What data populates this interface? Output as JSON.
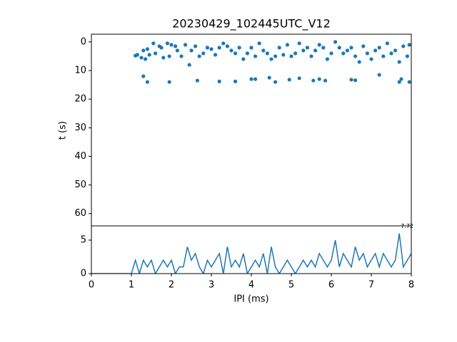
{
  "chart_data": [
    {
      "type": "scatter",
      "title": "20230429_102445UTC_V12",
      "y_label": "t (s)",
      "color": "#1f77b4",
      "x": [
        1.1,
        1.15,
        1.25,
        1.3,
        1.35,
        1.4,
        1.45,
        1.55,
        1.6,
        1.7,
        1.75,
        1.8,
        1.9,
        1.95,
        2.0,
        2.1,
        2.15,
        2.25,
        2.35,
        2.45,
        2.5,
        2.6,
        2.7,
        2.8,
        2.9,
        3.0,
        3.1,
        3.2,
        3.3,
        3.4,
        3.5,
        3.6,
        3.7,
        3.8,
        3.9,
        4.0,
        4.1,
        4.2,
        4.3,
        4.4,
        4.5,
        4.6,
        4.7,
        4.8,
        4.9,
        5.0,
        5.1,
        5.2,
        5.3,
        5.4,
        5.5,
        5.6,
        5.7,
        5.8,
        5.9,
        6.0,
        6.1,
        6.2,
        6.3,
        6.4,
        6.5,
        6.6,
        6.7,
        6.8,
        6.9,
        7.0,
        7.1,
        7.2,
        7.3,
        7.4,
        7.5,
        7.6,
        7.7,
        7.8,
        7.9,
        7.95,
        1.3,
        1.4,
        1.95,
        2.65,
        3.2,
        3.6,
        4.0,
        4.1,
        4.45,
        4.6,
        4.95,
        5.2,
        5.55,
        5.7,
        5.85,
        6.5,
        6.6,
        7.2,
        7.7,
        7.75,
        7.95
      ],
      "values": [
        4.8,
        4.5,
        5.5,
        3,
        6,
        2.5,
        4.5,
        0.5,
        4,
        1.5,
        2,
        5.5,
        0.5,
        5,
        1,
        1.5,
        3,
        5,
        1,
        8,
        3,
        1.5,
        5,
        4,
        2,
        2.5,
        4.5,
        2,
        0.5,
        1.5,
        3,
        4,
        2,
        6,
        4,
        2,
        5,
        0.5,
        3,
        4,
        6,
        5,
        2,
        4.5,
        1,
        5,
        4,
        0.5,
        3,
        2,
        5,
        3,
        1,
        2,
        6,
        4,
        0,
        2,
        4,
        3,
        2,
        5,
        7,
        1.5,
        4,
        6,
        3,
        2,
        5,
        0.5,
        4,
        3,
        7,
        1.5,
        5,
        1,
        12,
        14,
        14,
        13.5,
        13.8,
        13.8,
        13,
        13,
        12.5,
        14,
        13.2,
        12.7,
        13.5,
        13,
        13.5,
        13.2,
        13.4,
        11.5,
        14,
        13,
        14
      ],
      "xlim": [
        0,
        8
      ],
      "ylim": [
        -2.7,
        64.3
      ],
      "y_inverted": true,
      "yticks": [
        0,
        10,
        20,
        30,
        40,
        50,
        60
      ]
    },
    {
      "type": "line",
      "x_label": "IPI (ms)",
      "color": "#1f77b4",
      "annotation": "7.72",
      "x": [
        0,
        0.1,
        0.2,
        0.3,
        0.4,
        0.5,
        0.6,
        0.7,
        0.8,
        0.9,
        1.0,
        1.1,
        1.2,
        1.3,
        1.4,
        1.5,
        1.6,
        1.7,
        1.8,
        1.9,
        2.0,
        2.1,
        2.2,
        2.3,
        2.4,
        2.5,
        2.6,
        2.7,
        2.8,
        2.9,
        3.0,
        3.1,
        3.2,
        3.3,
        3.4,
        3.5,
        3.6,
        3.7,
        3.8,
        3.9,
        4.0,
        4.1,
        4.2,
        4.3,
        4.4,
        4.5,
        4.6,
        4.7,
        4.8,
        4.9,
        5.0,
        5.1,
        5.2,
        5.3,
        5.4,
        5.5,
        5.6,
        5.7,
        5.8,
        5.9,
        6.0,
        6.1,
        6.2,
        6.3,
        6.4,
        6.5,
        6.6,
        6.7,
        6.8,
        6.9,
        7.0,
        7.1,
        7.2,
        7.3,
        7.4,
        7.5,
        7.6,
        7.7,
        7.8,
        7.9,
        8.0
      ],
      "values": [
        0,
        0,
        0,
        0,
        0,
        0,
        0,
        0,
        0,
        0,
        0,
        2,
        0,
        2,
        1,
        2,
        0,
        1,
        2,
        1,
        2,
        0,
        1,
        1,
        4,
        2,
        3,
        1,
        0,
        2,
        1,
        2,
        3,
        0,
        4,
        1,
        2,
        1,
        3,
        0,
        1,
        2,
        1,
        3,
        0,
        4,
        1,
        0,
        1,
        2,
        1,
        0,
        1,
        2,
        1,
        2,
        1,
        3,
        2,
        1,
        2,
        5,
        1,
        3,
        2,
        1,
        4,
        2,
        3,
        1,
        2,
        3,
        1,
        3,
        2,
        1,
        2,
        6,
        1,
        2,
        3
      ],
      "xlim": [
        0,
        8
      ],
      "ylim": [
        0,
        7.13
      ],
      "xticks": [
        0,
        1,
        2,
        3,
        4,
        5,
        6,
        7,
        8
      ],
      "yticks": [
        0,
        5
      ]
    }
  ]
}
